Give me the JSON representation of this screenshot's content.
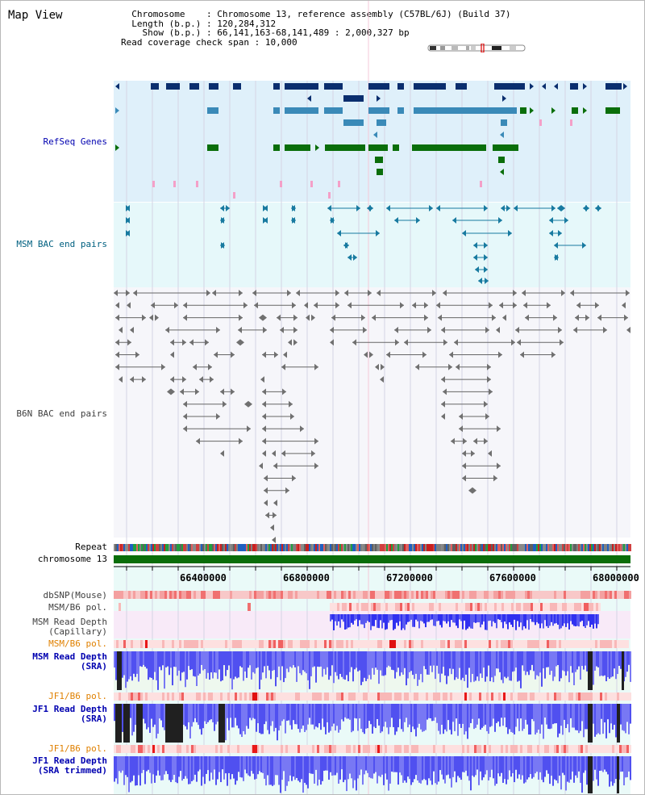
{
  "app": {
    "title": "Map View"
  },
  "header": {
    "chromosome_label": "Chromosome",
    "chromosome_value": "Chromosome 13, reference assembly (C57BL/6J) (Build 37)",
    "length_label": "Length (b.p.)",
    "length_value": "120,284,312",
    "show_label": "Show (b.p.)",
    "show_value": "66,141,163-68,141,489 : 2,000,327 bp",
    "coverage_label": "Read coverage check span",
    "coverage_value": "10,000"
  },
  "tracks": {
    "refseq": "RefSeq Genes",
    "msm_bac": "MSM BAC end pairs",
    "b6n_bac": "B6N BAC end pairs",
    "repeat": "Repeat",
    "chromosome": "chromosome 13",
    "dbsnp": "dbSNP(Mouse)",
    "msm_b6_pol_1": "MSM/B6 pol.",
    "msm_depth_cap_1": "MSM Read Depth",
    "msm_depth_cap_2": "(Capillary)",
    "msm_b6_pol_2": "MSM/B6 pol.",
    "msm_depth_sra_1": "MSM Read Depth",
    "msm_depth_sra_2": "(SRA)",
    "jf1_b6_pol_1": "JF1/B6 pol.",
    "jf1_depth_sra_1": "JF1 Read Depth",
    "jf1_depth_sra_2": "(SRA)",
    "jf1_b6_pol_2": "JF1/B6 pol.",
    "jf1_depth_trim_1": "JF1 Read Depth",
    "jf1_depth_trim_2": "(SRA trimmed)"
  },
  "axis": {
    "ticks": [
      "66400000",
      "66800000",
      "67200000",
      "67600000",
      "68000000"
    ]
  },
  "colors": {
    "label_blue": "#0000b0",
    "label_teal": "#006080",
    "label_gray": "#404040",
    "label_orange": "#e08000",
    "gene_dark": "#0a2e6e",
    "gene_mid": "#3a8ab8",
    "gene_green": "#0a6e0a",
    "bac_teal": "#187aa0",
    "bac_gray": "#707070",
    "depth_blue": "#2a2af0",
    "chrom_green": "#0a6e0a"
  }
}
